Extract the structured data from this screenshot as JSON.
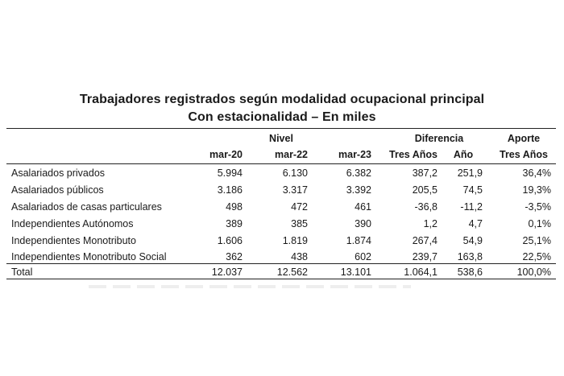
{
  "title": "Trabajadores registrados según modalidad ocupacional principal",
  "subtitle": "Con estacionalidad – En miles",
  "header": {
    "group_nivel": "Nivel",
    "group_diferencia": "Diferencia",
    "group_aporte": "Aporte",
    "cols": [
      "mar-20",
      "mar-22",
      "mar-23",
      "Tres Años",
      "Año",
      "Tres Años"
    ]
  },
  "rows": [
    {
      "label": "Asalariados privados",
      "values": [
        "5.994",
        "6.130",
        "6.382",
        "387,2",
        "251,9",
        "36,4%"
      ]
    },
    {
      "label": "Asalariados públicos",
      "values": [
        "3.186",
        "3.317",
        "3.392",
        "205,5",
        "74,5",
        "19,3%"
      ]
    },
    {
      "label": "Asalariados de casas particulares",
      "values": [
        "498",
        "472",
        "461",
        "-36,8",
        "-11,2",
        "-3,5%"
      ]
    },
    {
      "label": "Independientes Autónomos",
      "values": [
        "389",
        "385",
        "390",
        "1,2",
        "4,7",
        "0,1%"
      ]
    },
    {
      "label": "Independientes Monotributo",
      "values": [
        "1.606",
        "1.819",
        "1.874",
        "267,4",
        "54,9",
        "25,1%"
      ]
    },
    {
      "label": "Independientes Monotributo Social",
      "values": [
        "362",
        "438",
        "602",
        "239,7",
        "163,8",
        "22,5%"
      ]
    }
  ],
  "total": {
    "label": "Total",
    "values": [
      "12.037",
      "12.562",
      "13.101",
      "1.064,1",
      "538,6",
      "100,0%"
    ]
  }
}
